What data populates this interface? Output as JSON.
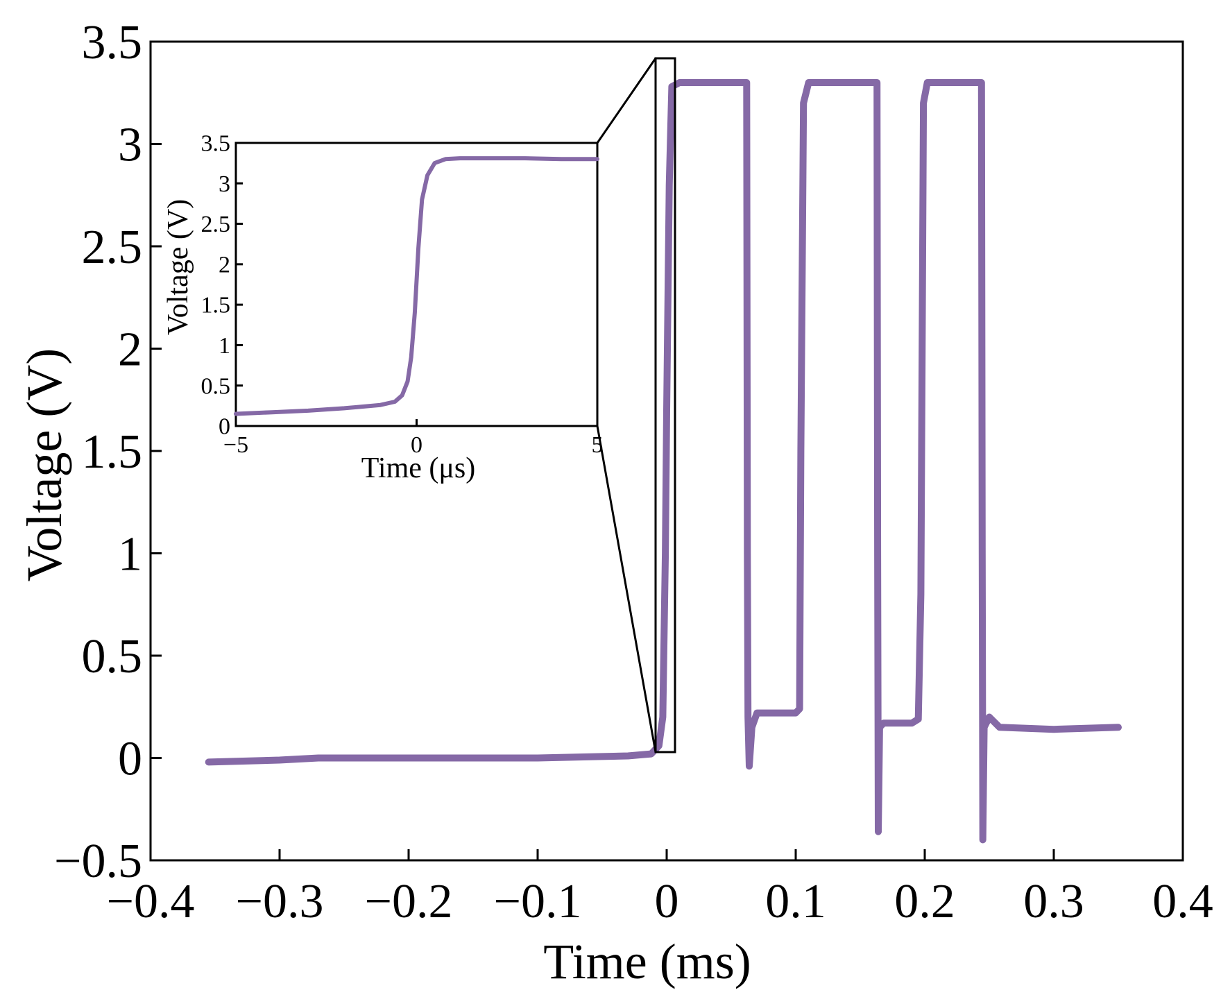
{
  "chart_data": [
    {
      "name": "main",
      "type": "line",
      "xlabel": "Time (ms)",
      "ylabel": "Voltage (V)",
      "xlim": [
        -0.4,
        0.4
      ],
      "ylim": [
        -0.5,
        3.5
      ],
      "xticks": [
        "−0.4",
        "−0.3",
        "−0.2",
        "−0.1",
        "0",
        "0.1",
        "0.2",
        "0.3",
        "0.4"
      ],
      "yticks": [
        "−0.5",
        "0",
        "0.5",
        "1",
        "1.5",
        "2",
        "2.5",
        "3",
        "3.5"
      ],
      "series": [
        {
          "name": "voltage",
          "color": "#8569a6",
          "x": [
            -0.355,
            -0.3,
            -0.27,
            -0.2,
            -0.1,
            -0.03,
            -0.012,
            -0.006,
            -0.003,
            -0.001,
            0.0,
            0.002,
            0.004,
            0.01,
            0.03,
            0.062,
            0.0625,
            0.063,
            0.064,
            0.066,
            0.07,
            0.1,
            0.103,
            0.104,
            0.106,
            0.11,
            0.14,
            0.163,
            0.1635,
            0.164,
            0.165,
            0.168,
            0.19,
            0.195,
            0.197,
            0.199,
            0.202,
            0.22,
            0.244,
            0.2445,
            0.245,
            0.246,
            0.25,
            0.258,
            0.3,
            0.35
          ],
          "y": [
            -0.02,
            -0.01,
            0.0,
            0.0,
            0.0,
            0.01,
            0.02,
            0.06,
            0.2,
            1.0,
            1.7,
            2.8,
            3.28,
            3.3,
            3.3,
            3.3,
            1.0,
            0.2,
            -0.04,
            0.15,
            0.22,
            0.22,
            0.24,
            1.5,
            3.2,
            3.3,
            3.3,
            3.3,
            1.0,
            -0.36,
            0.15,
            0.17,
            0.17,
            0.19,
            0.8,
            3.2,
            3.3,
            3.3,
            3.3,
            1.0,
            -0.4,
            0.15,
            0.2,
            0.15,
            0.14,
            0.15
          ]
        }
      ]
    },
    {
      "name": "inset",
      "type": "line",
      "xlabel": "Time (μs)",
      "ylabel": "Voltage (V)",
      "xlim": [
        -5,
        5
      ],
      "ylim": [
        0,
        3.5
      ],
      "xticks": [
        "−5",
        "0",
        "5"
      ],
      "yticks": [
        "0",
        "0.5",
        "1",
        "1.5",
        "2",
        "2.5",
        "3",
        "3.5"
      ],
      "series": [
        {
          "name": "voltage",
          "color": "#8569a6",
          "x": [
            -5.0,
            -4.0,
            -3.0,
            -2.0,
            -1.0,
            -0.6,
            -0.4,
            -0.25,
            -0.15,
            -0.05,
            0.0,
            0.05,
            0.15,
            0.3,
            0.5,
            0.8,
            1.2,
            2.0,
            3.0,
            4.0,
            5.0
          ],
          "y": [
            0.15,
            0.17,
            0.19,
            0.22,
            0.26,
            0.3,
            0.38,
            0.55,
            0.85,
            1.4,
            1.8,
            2.2,
            2.8,
            3.1,
            3.25,
            3.3,
            3.31,
            3.31,
            3.31,
            3.3,
            3.3
          ]
        }
      ]
    }
  ]
}
